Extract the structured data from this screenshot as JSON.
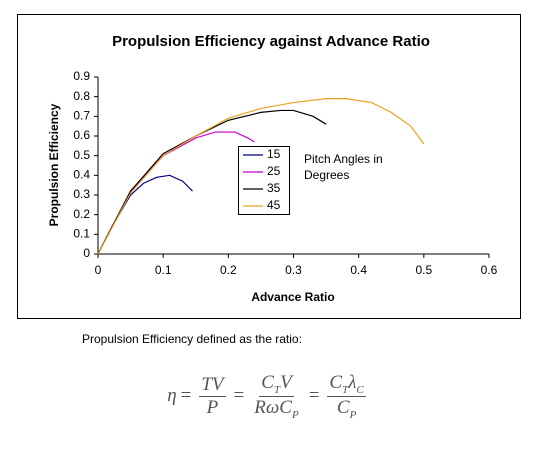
{
  "chart_data": {
    "type": "line",
    "title": "Propulsion Efficiency against Advance Ratio",
    "xlabel": "Advance Ratio",
    "ylabel": "Propulsion Efficiency",
    "xlim": [
      0,
      0.6
    ],
    "ylim": [
      0,
      0.9
    ],
    "xticks": [
      0,
      0.1,
      0.2,
      0.3,
      0.4,
      0.5,
      0.6
    ],
    "yticks": [
      0,
      0.1,
      0.2,
      0.3,
      0.4,
      0.5,
      0.6,
      0.7,
      0.8,
      0.9
    ],
    "grid": false,
    "legend": "center",
    "annotation": [
      "Pitch Angles in",
      "Degrees"
    ],
    "series": [
      {
        "name": "15",
        "color": "#000080",
        "x": [
          0,
          0.02,
          0.05,
          0.07,
          0.09,
          0.11,
          0.13,
          0.145
        ],
        "values": [
          0,
          0.13,
          0.3,
          0.36,
          0.39,
          0.4,
          0.37,
          0.32
        ]
      },
      {
        "name": "25",
        "color": "#cc00cc",
        "x": [
          0,
          0.05,
          0.1,
          0.15,
          0.18,
          0.21,
          0.23,
          0.24
        ],
        "values": [
          0,
          0.32,
          0.5,
          0.59,
          0.62,
          0.62,
          0.59,
          0.57
        ]
      },
      {
        "name": "35",
        "color": "#000000",
        "x": [
          0,
          0.05,
          0.1,
          0.15,
          0.2,
          0.25,
          0.28,
          0.3,
          0.33,
          0.35
        ],
        "values": [
          0,
          0.32,
          0.51,
          0.6,
          0.68,
          0.72,
          0.73,
          0.73,
          0.7,
          0.66
        ]
      },
      {
        "name": "45",
        "color": "#e8a020",
        "x": [
          0,
          0.05,
          0.1,
          0.15,
          0.2,
          0.25,
          0.3,
          0.35,
          0.38,
          0.42,
          0.45,
          0.48,
          0.5
        ],
        "values": [
          0,
          0.31,
          0.5,
          0.6,
          0.69,
          0.74,
          0.77,
          0.79,
          0.79,
          0.77,
          0.72,
          0.65,
          0.56
        ]
      }
    ]
  },
  "caption": "Propulsion Efficiency defined as the ratio:",
  "formula": {
    "lhs": "η",
    "relation": "=",
    "fractions": [
      {
        "num": [
          {
            "t": "TV"
          }
        ],
        "den": [
          {
            "t": "P"
          }
        ]
      },
      {
        "num": [
          {
            "t": "C",
            "sub": "T"
          },
          {
            "t": "V"
          }
        ],
        "den": [
          {
            "t": "Rω"
          },
          {
            "t": "C",
            "sub": "P"
          }
        ]
      },
      {
        "num": [
          {
            "t": "C",
            "sub": "T"
          },
          {
            "t": "λ",
            "sub": "C"
          }
        ],
        "den": [
          {
            "t": "C",
            "sub": "P"
          }
        ]
      }
    ]
  }
}
